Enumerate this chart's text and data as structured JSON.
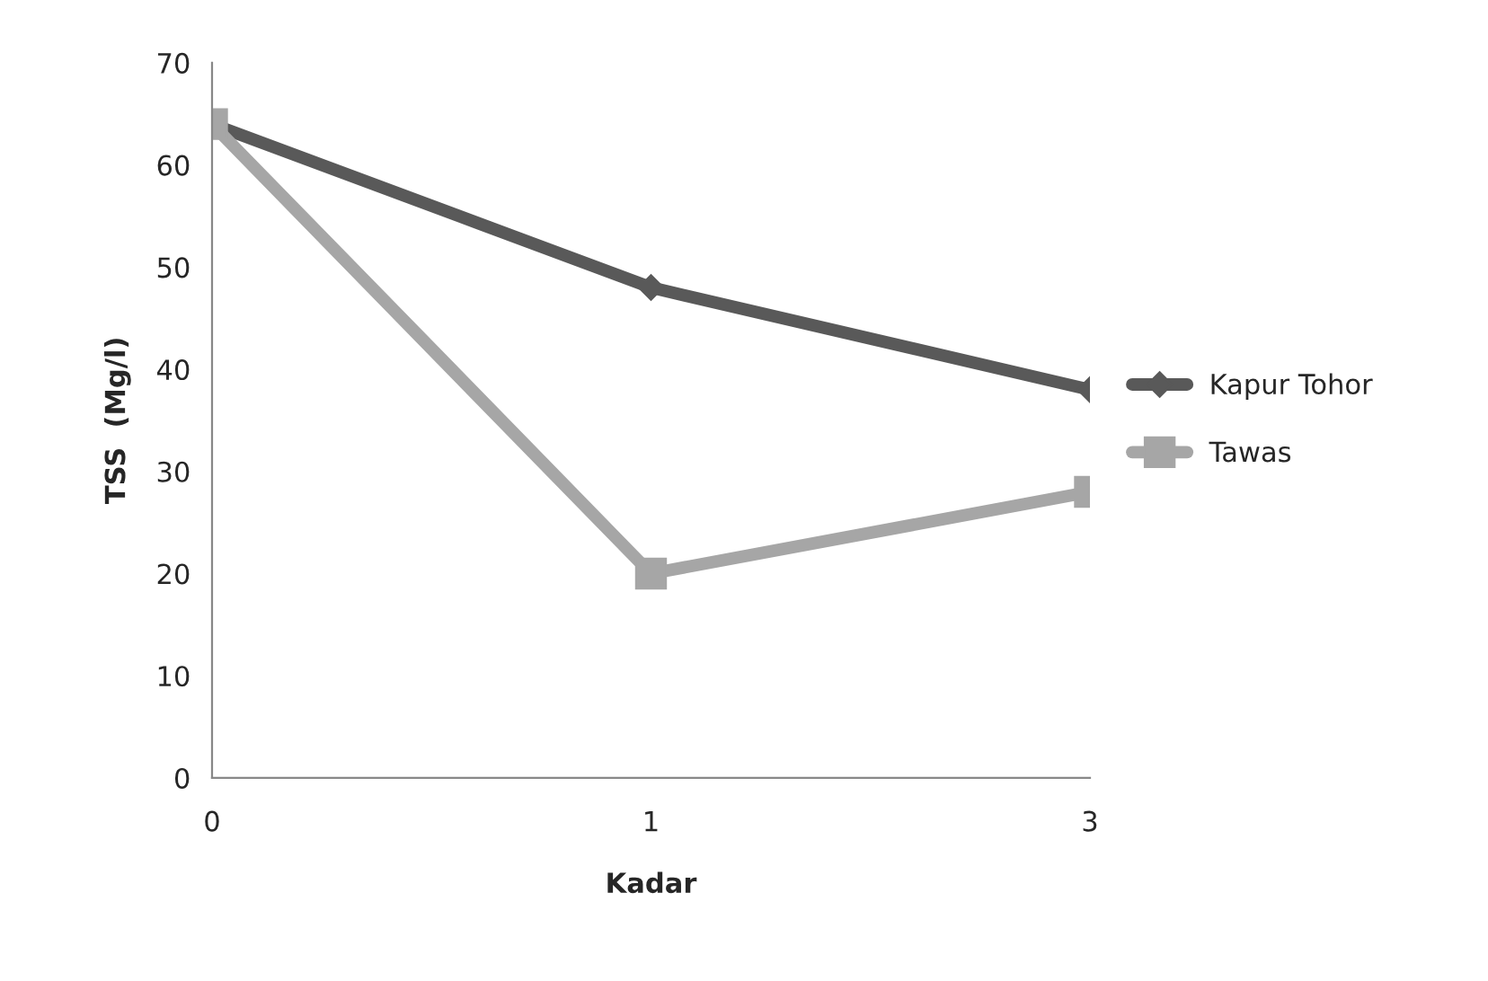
{
  "chart_data": {
    "type": "line",
    "xlabel": "Kadar",
    "ylabel": "TSS  (Mg/l)",
    "categories": [
      "0",
      "1",
      "3"
    ],
    "series": [
      {
        "name": "Kapur Tohor",
        "color": "#595959",
        "marker": "diamond",
        "values": [
          64,
          48,
          38
        ]
      },
      {
        "name": "Tawas",
        "color": "#a6a6a6",
        "marker": "square",
        "values": [
          64,
          20,
          28
        ]
      }
    ],
    "ylim": [
      0,
      70
    ],
    "yticks": [
      0,
      10,
      20,
      30,
      40,
      50,
      60,
      70
    ],
    "legend": "right",
    "line_style": "solid"
  }
}
